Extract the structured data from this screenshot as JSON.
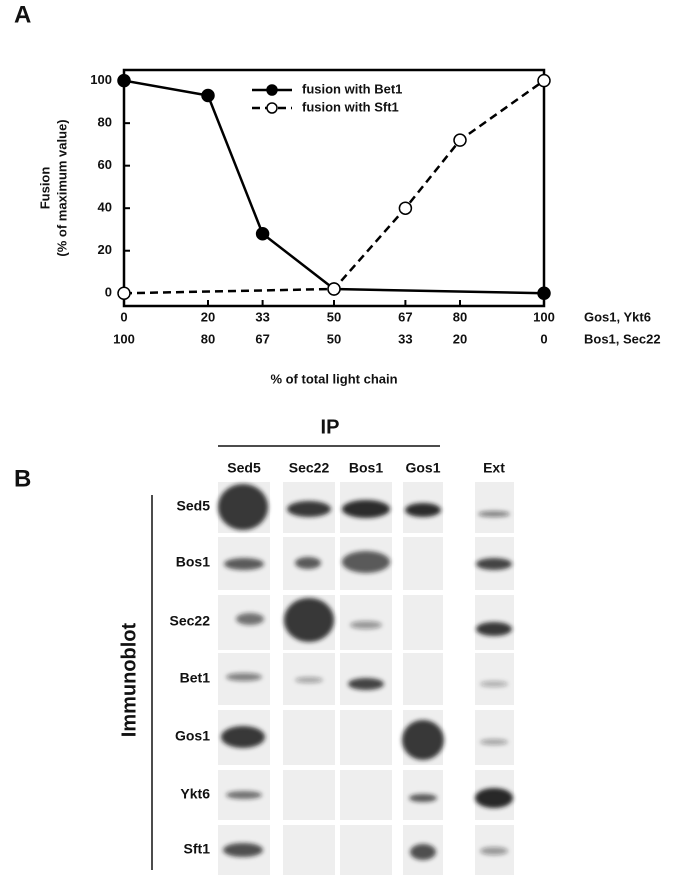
{
  "panels": [
    "A",
    "B"
  ],
  "chart_data": {
    "type": "line",
    "xlim": [
      0,
      100
    ],
    "xticks": [
      0,
      20,
      33,
      50,
      67,
      80,
      100
    ],
    "xticks_secondary": [
      {
        "value": 0,
        "label": "100"
      },
      {
        "value": 20,
        "label": "80"
      },
      {
        "value": 33,
        "label": "67"
      },
      {
        "value": 50,
        "label": "50"
      },
      {
        "value": 67,
        "label": "33"
      },
      {
        "value": 80,
        "label": "20"
      },
      {
        "value": 100,
        "label": "0"
      }
    ],
    "xtick_row_labels": [
      "Gos1, Ykt6",
      "Bos1, Sec22"
    ],
    "xlabel": "% of total light chain",
    "ylabel": [
      "Fusion",
      "(% of maximum value)"
    ],
    "ylim": [
      -6,
      105
    ],
    "yticks": [
      0,
      20,
      40,
      60,
      80,
      100
    ],
    "legend": "top",
    "series": [
      {
        "name": "fusion with Bet1",
        "color": "#000000",
        "marker": "filled",
        "linestyle": "solid",
        "x": [
          0,
          20,
          33,
          50,
          100
        ],
        "values": [
          100,
          93,
          28,
          2,
          0
        ]
      },
      {
        "name": "fusion with Sft1",
        "color": "#000000",
        "marker": "open",
        "linestyle": "dashed",
        "x": [
          0,
          50,
          67,
          80,
          100
        ],
        "values": [
          0,
          2,
          40,
          72,
          100
        ]
      }
    ]
  },
  "blot": {
    "group_label": "IP",
    "side_label": "Immunoblot",
    "columns": [
      "Sed5",
      "Sec22",
      "Bos1",
      "Gos1",
      "Ext"
    ],
    "rows": [
      "Sed5",
      "Bos1",
      "Sec22",
      "Bet1",
      "Gos1",
      "Ykt6",
      "Sft1"
    ]
  }
}
